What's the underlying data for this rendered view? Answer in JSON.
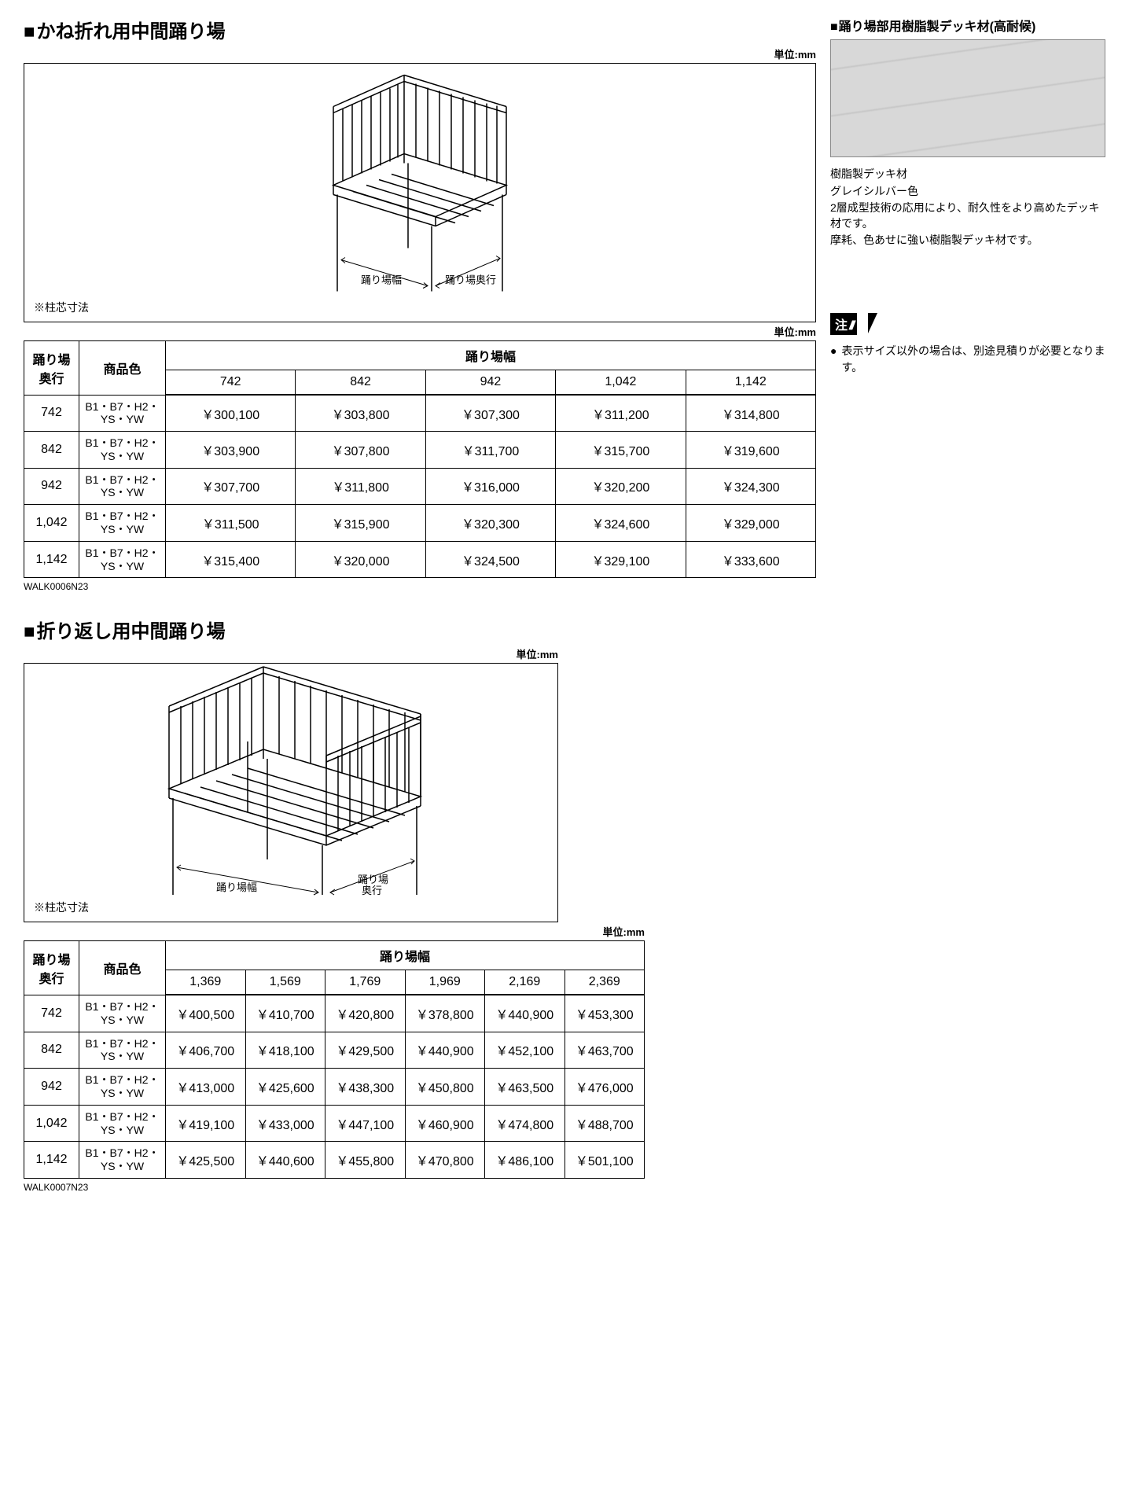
{
  "section1": {
    "title": "かね折れ用中間踊り場",
    "unit_top": "単位:mm",
    "diagram": {
      "label_width": "踊り場幅",
      "label_depth": "踊り場奥行",
      "note": "※柱芯寸法"
    },
    "unit_table": "単位:mm",
    "table": {
      "header_depth": "踊り場\n奥行",
      "header_color": "商品色",
      "header_width": "踊り場幅",
      "widths": [
        "742",
        "842",
        "942",
        "1,042",
        "1,142"
      ],
      "color_code": "B1・B7・H2・\nYS・YW",
      "rows": [
        {
          "depth": "742",
          "prices": [
            "￥300,100",
            "￥303,800",
            "￥307,300",
            "￥311,200",
            "￥314,800"
          ]
        },
        {
          "depth": "842",
          "prices": [
            "￥303,900",
            "￥307,800",
            "￥311,700",
            "￥315,700",
            "￥319,600"
          ]
        },
        {
          "depth": "942",
          "prices": [
            "￥307,700",
            "￥311,800",
            "￥316,000",
            "￥320,200",
            "￥324,300"
          ]
        },
        {
          "depth": "1,042",
          "prices": [
            "￥311,500",
            "￥315,900",
            "￥320,300",
            "￥324,600",
            "￥329,000"
          ]
        },
        {
          "depth": "1,142",
          "prices": [
            "￥315,400",
            "￥320,000",
            "￥324,500",
            "￥329,100",
            "￥333,600"
          ]
        }
      ],
      "code": "WALK0006N23"
    }
  },
  "section2": {
    "title": "折り返し用中間踊り場",
    "unit_top": "単位:mm",
    "diagram": {
      "label_width": "踊り場幅",
      "label_depth": "踊り場\n奥行",
      "note": "※柱芯寸法"
    },
    "unit_table": "単位:mm",
    "table": {
      "header_depth": "踊り場\n奥行",
      "header_color": "商品色",
      "header_width": "踊り場幅",
      "widths": [
        "1,369",
        "1,569",
        "1,769",
        "1,969",
        "2,169",
        "2,369"
      ],
      "color_code": "B1・B7・H2・\nYS・YW",
      "rows": [
        {
          "depth": "742",
          "prices": [
            "￥400,500",
            "￥410,700",
            "￥420,800",
            "￥378,800",
            "￥440,900",
            "￥453,300"
          ]
        },
        {
          "depth": "842",
          "prices": [
            "￥406,700",
            "￥418,100",
            "￥429,500",
            "￥440,900",
            "￥452,100",
            "￥463,700"
          ]
        },
        {
          "depth": "942",
          "prices": [
            "￥413,000",
            "￥425,600",
            "￥438,300",
            "￥450,800",
            "￥463,500",
            "￥476,000"
          ]
        },
        {
          "depth": "1,042",
          "prices": [
            "￥419,100",
            "￥433,000",
            "￥447,100",
            "￥460,900",
            "￥474,800",
            "￥488,700"
          ]
        },
        {
          "depth": "1,142",
          "prices": [
            "￥425,500",
            "￥440,600",
            "￥455,800",
            "￥470,800",
            "￥486,100",
            "￥501,100"
          ]
        }
      ],
      "code": "WALK0007N23"
    }
  },
  "sidebar": {
    "material_title": "踊り場部用樹脂製デッキ材(高耐候)",
    "material_name": "樹脂製デッキ材",
    "material_color": "グレイシルバー色",
    "material_desc1": "2層成型技術の応用により、耐久性をより高めたデッキ材です。",
    "material_desc2": "摩耗、色あせに強い樹脂製デッキ材です。",
    "note_label": "注",
    "note_text": "表示サイズ以外の場合は、別途見積りが必要となります。"
  },
  "style": {
    "border_color": "#000000",
    "background": "#ffffff",
    "swatch_color": "#d8d8d8"
  }
}
